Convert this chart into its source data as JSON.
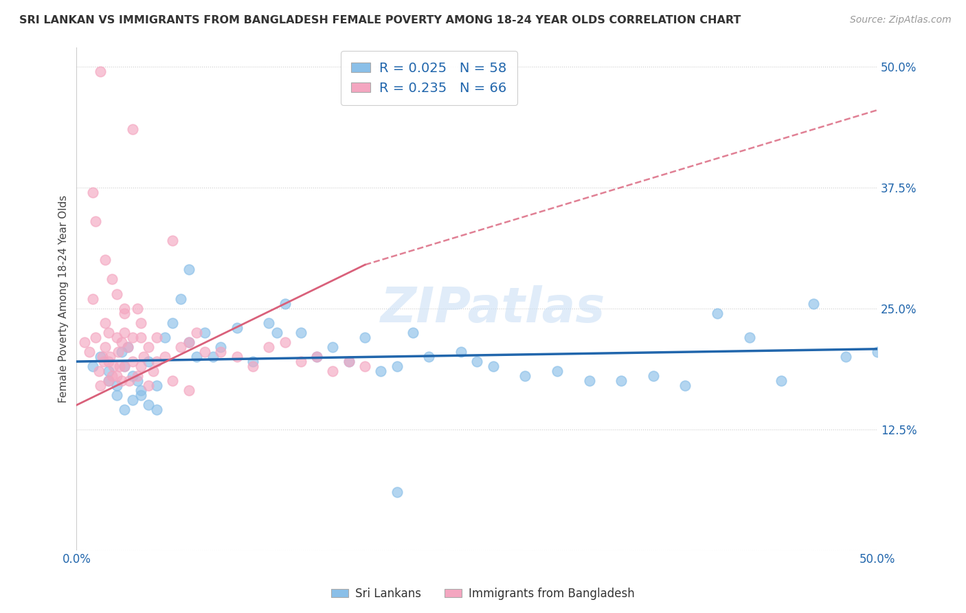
{
  "title": "SRI LANKAN VS IMMIGRANTS FROM BANGLADESH FEMALE POVERTY AMONG 18-24 YEAR OLDS CORRELATION CHART",
  "source": "Source: ZipAtlas.com",
  "ylabel": "Female Poverty Among 18-24 Year Olds",
  "xlim": [
    0,
    50
  ],
  "ylim": [
    0,
    52
  ],
  "xticks": [
    0,
    12.5,
    25,
    37.5,
    50
  ],
  "yticks": [
    0,
    12.5,
    25,
    37.5,
    50
  ],
  "xticklabels": [
    "0.0%",
    "",
    "",
    "",
    "50.0%"
  ],
  "yticklabels": [
    "",
    "12.5%",
    "25.0%",
    "37.5%",
    "50.0%"
  ],
  "legend_labels": [
    "Sri Lankans",
    "Immigrants from Bangladesh"
  ],
  "legend_r": [
    0.025,
    0.235
  ],
  "legend_n": [
    58,
    66
  ],
  "sri_lankan_color": "#8abfe8",
  "bangladesh_color": "#f4a6c0",
  "sri_lankan_line_color": "#2166ac",
  "bangladesh_line_color": "#d9607a",
  "watermark": "ZIPatlas",
  "sri_lankan_x": [
    1.0,
    1.5,
    2.0,
    2.5,
    2.8,
    3.0,
    3.2,
    3.5,
    3.8,
    4.0,
    4.5,
    5.0,
    5.5,
    6.0,
    7.0,
    7.5,
    8.0,
    9.0,
    10.0,
    11.0,
    12.0,
    13.0,
    14.0,
    15.0,
    16.0,
    17.0,
    18.0,
    19.0,
    20.0,
    21.0,
    22.0,
    24.0,
    25.0,
    26.0,
    28.0,
    30.0,
    32.0,
    34.0,
    36.0,
    38.0,
    40.0,
    42.0,
    44.0,
    46.0,
    48.0,
    50.0,
    3.5,
    4.0,
    4.5,
    5.0,
    2.0,
    2.5,
    3.0,
    6.5,
    7.0,
    8.5,
    12.5,
    20.0
  ],
  "sri_lankan_y": [
    19.0,
    20.0,
    18.5,
    17.0,
    20.5,
    19.0,
    21.0,
    18.0,
    17.5,
    16.5,
    19.5,
    17.0,
    22.0,
    23.5,
    21.5,
    20.0,
    22.5,
    21.0,
    23.0,
    19.5,
    23.5,
    25.5,
    22.5,
    20.0,
    21.0,
    19.5,
    22.0,
    18.5,
    19.0,
    22.5,
    20.0,
    20.5,
    19.5,
    19.0,
    18.0,
    18.5,
    17.5,
    17.5,
    18.0,
    17.0,
    24.5,
    22.0,
    17.5,
    25.5,
    20.0,
    20.5,
    15.5,
    16.0,
    15.0,
    14.5,
    17.5,
    16.0,
    14.5,
    26.0,
    29.0,
    20.0,
    22.5,
    6.0
  ],
  "bangladesh_x": [
    0.5,
    0.8,
    1.0,
    1.2,
    1.4,
    1.5,
    1.5,
    1.6,
    1.7,
    1.8,
    1.8,
    2.0,
    2.0,
    2.0,
    2.1,
    2.2,
    2.3,
    2.5,
    2.5,
    2.6,
    2.7,
    2.8,
    2.8,
    3.0,
    3.0,
    3.0,
    3.2,
    3.3,
    3.5,
    3.5,
    3.5,
    3.8,
    3.8,
    4.0,
    4.0,
    4.2,
    4.5,
    4.5,
    4.8,
    5.0,
    5.5,
    6.0,
    6.5,
    7.0,
    7.5,
    8.0,
    9.0,
    10.0,
    11.0,
    12.0,
    13.0,
    14.0,
    15.0,
    16.0,
    17.0,
    18.0,
    1.0,
    1.2,
    1.8,
    2.2,
    2.5,
    3.0,
    4.0,
    5.0,
    6.0,
    7.0
  ],
  "bangladesh_y": [
    21.5,
    20.5,
    26.0,
    22.0,
    18.5,
    49.5,
    17.0,
    20.0,
    19.5,
    21.0,
    23.5,
    22.5,
    19.5,
    17.5,
    20.0,
    18.0,
    19.0,
    22.0,
    18.0,
    20.5,
    19.0,
    21.5,
    17.5,
    24.5,
    22.5,
    19.0,
    21.0,
    17.5,
    43.5,
    22.0,
    19.5,
    25.0,
    18.0,
    22.0,
    19.0,
    20.0,
    21.0,
    17.0,
    18.5,
    19.5,
    20.0,
    32.0,
    21.0,
    21.5,
    22.5,
    20.5,
    20.5,
    20.0,
    19.0,
    21.0,
    21.5,
    19.5,
    20.0,
    18.5,
    19.5,
    19.0,
    37.0,
    34.0,
    30.0,
    28.0,
    26.5,
    25.0,
    23.5,
    22.0,
    17.5,
    16.5
  ],
  "sl_trend_x0": 0,
  "sl_trend_y0": 19.5,
  "sl_trend_x1": 50,
  "sl_trend_y1": 20.8,
  "bd_trend_solid_x0": 0,
  "bd_trend_solid_y0": 15.0,
  "bd_trend_solid_x1": 18,
  "bd_trend_solid_y1": 29.5,
  "bd_trend_dash_x0": 18,
  "bd_trend_dash_y0": 29.5,
  "bd_trend_dash_x1": 50,
  "bd_trend_dash_y1": 45.5
}
